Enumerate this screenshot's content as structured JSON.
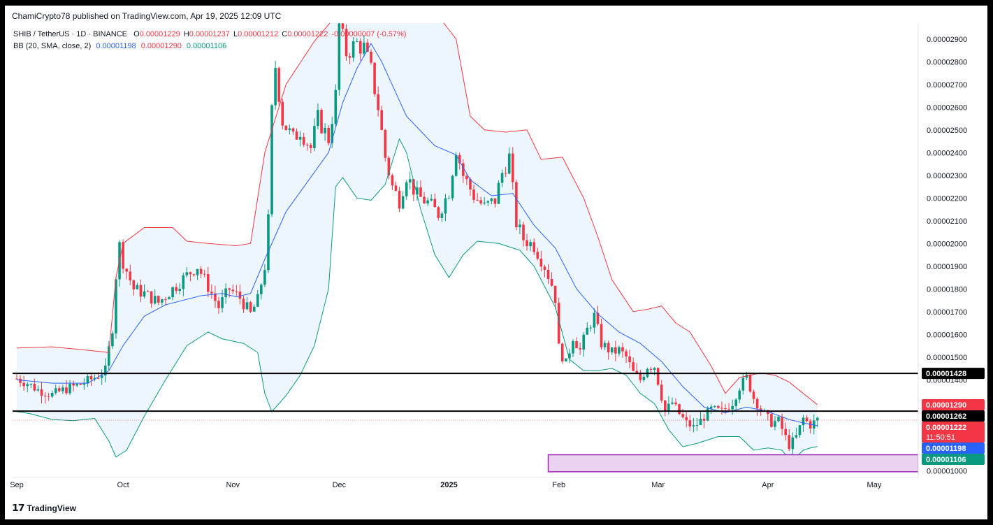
{
  "publish_line": "ChamiCrypto78 published on TradingView.com, Apr 19, 2025 12:09 UTC",
  "brand": "TradingView",
  "legend": {
    "symbol": "SHIB / TetherUS · 1D · BINANCE",
    "open_label": "O",
    "open": "0.00001229",
    "high_label": "H",
    "high": "0.00001237",
    "low_label": "L",
    "low": "0.00001212",
    "close_label": "C",
    "close": "0.00001222",
    "change": "-0.00000007 (-0.57%)",
    "bb_label": "BB (20, SMA, close, 2)",
    "bb_basis": "0.00001198",
    "bb_upper": "0.00001290",
    "bb_lower": "0.00001106"
  },
  "colors": {
    "up": "#089981",
    "down": "#f23645",
    "basis": "#2962ff",
    "upper": "#f23645",
    "lower": "#089981",
    "band_fill": "#eaf3fd",
    "zone_fill": "#ead3f0",
    "zone_stroke": "#9c27b0"
  },
  "chart_data": {
    "type": "candlestick",
    "title": "SHIB / TetherUS · 1D · BINANCE",
    "ylim": [
      9.7e-06,
      2.97e-05
    ],
    "y_ticks": [
      "0.00002900",
      "0.00002800",
      "0.00002700",
      "0.00002600",
      "0.00002500",
      "0.00002400",
      "0.00002300",
      "0.00002200",
      "0.00002100",
      "0.00002000",
      "0.00001900",
      "0.00001800",
      "0.00001700",
      "0.00001600",
      "0.00001500",
      "0.00001400",
      "0.00001000"
    ],
    "x_ticks": [
      {
        "label": "Sep",
        "day": 0
      },
      {
        "label": "Oct",
        "day": 30
      },
      {
        "label": "Nov",
        "day": 61
      },
      {
        "label": "Dec",
        "day": 91
      },
      {
        "label": "2025",
        "day": 122
      },
      {
        "label": "Feb",
        "day": 153
      },
      {
        "label": "Mar",
        "day": 181
      },
      {
        "label": "Apr",
        "day": 212
      },
      {
        "label": "May",
        "day": 242
      }
    ],
    "horizontal_levels": [
      1.428e-05,
      1.262e-05
    ],
    "support_zone": {
      "from_day": 150,
      "low": 9.95e-06,
      "high": 1.07e-05
    },
    "price_tags": [
      {
        "label": "0.00001428",
        "value": 1.428e-05,
        "color": "#000000"
      },
      {
        "label": "0.00001290",
        "value": 1.29e-05,
        "color": "#f23645"
      },
      {
        "label": "0.00001262",
        "value": 1.262e-05,
        "color": "#000000"
      },
      {
        "label": "0.00001222",
        "value": 1.222e-05,
        "color": "#f23645",
        "sub": "11:50:51"
      },
      {
        "label": "0.00001198",
        "value": 1.198e-05,
        "color": "#2962ff"
      },
      {
        "label": "0.00001106",
        "value": 1.106e-05,
        "color": "#089981"
      }
    ],
    "close_anchors": [
      [
        0,
        14.05
      ],
      [
        3,
        13.85
      ],
      [
        6,
        13.55
      ],
      [
        10,
        13.35
      ],
      [
        14,
        13.6
      ],
      [
        18,
        13.8
      ],
      [
        22,
        14.1
      ],
      [
        25,
        14.4
      ],
      [
        27,
        16.3
      ],
      [
        28,
        18.6
      ],
      [
        29,
        19.9
      ],
      [
        30,
        19.2
      ],
      [
        33,
        18.0
      ],
      [
        36,
        17.8
      ],
      [
        40,
        17.4
      ],
      [
        44,
        18.0
      ],
      [
        48,
        18.6
      ],
      [
        51,
        19.0
      ],
      [
        54,
        18.1
      ],
      [
        57,
        17.2
      ],
      [
        60,
        18.0
      ],
      [
        63,
        17.6
      ],
      [
        66,
        16.9
      ],
      [
        68,
        17.5
      ],
      [
        70,
        19.0
      ],
      [
        71,
        21.0
      ],
      [
        72,
        25.8
      ],
      [
        73,
        27.8
      ],
      [
        75,
        25.4
      ],
      [
        78,
        24.6
      ],
      [
        80,
        25.0
      ],
      [
        83,
        24.2
      ],
      [
        85,
        25.5
      ],
      [
        88,
        24.6
      ],
      [
        90,
        26.5
      ],
      [
        91,
        29.6
      ],
      [
        93,
        28.4
      ],
      [
        96,
        28.8
      ],
      [
        98,
        28.6
      ],
      [
        100,
        27.6
      ],
      [
        102,
        26.0
      ],
      [
        104,
        23.8
      ],
      [
        106,
        22.5
      ],
      [
        108,
        21.9
      ],
      [
        110,
        23.0
      ],
      [
        113,
        22.1
      ],
      [
        116,
        21.8
      ],
      [
        119,
        21.3
      ],
      [
        122,
        22.3
      ],
      [
        124,
        24.2
      ],
      [
        126,
        23.0
      ],
      [
        129,
        22.1
      ],
      [
        132,
        21.6
      ],
      [
        135,
        21.9
      ],
      [
        137,
        23.1
      ],
      [
        139,
        23.8
      ],
      [
        141,
        20.9
      ],
      [
        143,
        20.2
      ],
      [
        146,
        19.9
      ],
      [
        149,
        19.0
      ],
      [
        151,
        18.2
      ],
      [
        152,
        17.6
      ],
      [
        153,
        15.4
      ],
      [
        155,
        14.7
      ],
      [
        157,
        15.9
      ],
      [
        159,
        15.3
      ],
      [
        161,
        16.2
      ],
      [
        163,
        16.8
      ],
      [
        165,
        15.6
      ],
      [
        168,
        15.2
      ],
      [
        170,
        15.3
      ],
      [
        172,
        15.0
      ],
      [
        174,
        14.3
      ],
      [
        176,
        14.0
      ],
      [
        178,
        14.6
      ],
      [
        180,
        14.6
      ],
      [
        183,
        12.6
      ],
      [
        185,
        13.0
      ],
      [
        187,
        12.5
      ],
      [
        189,
        12.1
      ],
      [
        191,
        11.9
      ],
      [
        193,
        12.2
      ],
      [
        196,
        12.7
      ],
      [
        199,
        12.6
      ],
      [
        202,
        13.0
      ],
      [
        204,
        13.7
      ],
      [
        206,
        14.1
      ],
      [
        208,
        13.2
      ],
      [
        210,
        12.7
      ],
      [
        213,
        12.1
      ],
      [
        215,
        12.2
      ],
      [
        218,
        11.1
      ],
      [
        220,
        11.5
      ],
      [
        222,
        12.3
      ],
      [
        224,
        12.0
      ],
      [
        226,
        12.25
      ]
    ],
    "basis_anchors": [
      [
        0,
        14.0
      ],
      [
        10,
        13.85
      ],
      [
        20,
        13.85
      ],
      [
        26,
        14.4
      ],
      [
        30,
        15.5
      ],
      [
        36,
        16.8
      ],
      [
        42,
        17.3
      ],
      [
        52,
        17.7
      ],
      [
        58,
        17.8
      ],
      [
        62,
        17.65
      ],
      [
        66,
        17.8
      ],
      [
        70,
        19.3
      ],
      [
        76,
        21.4
      ],
      [
        82,
        22.7
      ],
      [
        88,
        24.0
      ],
      [
        92,
        26.2
      ],
      [
        96,
        27.7
      ],
      [
        100,
        28.8
      ],
      [
        103,
        28.0
      ],
      [
        110,
        25.6
      ],
      [
        118,
        24.3
      ],
      [
        124,
        23.9
      ],
      [
        128,
        22.8
      ],
      [
        134,
        22.1
      ],
      [
        140,
        22.2
      ],
      [
        146,
        20.8
      ],
      [
        152,
        19.8
      ],
      [
        158,
        18.0
      ],
      [
        164,
        16.9
      ],
      [
        170,
        16.1
      ],
      [
        176,
        15.6
      ],
      [
        182,
        14.8
      ],
      [
        188,
        13.7
      ],
      [
        194,
        12.8
      ],
      [
        200,
        12.55
      ],
      [
        206,
        12.8
      ],
      [
        212,
        12.6
      ],
      [
        218,
        12.25
      ],
      [
        222,
        12.1
      ],
      [
        226,
        11.98
      ]
    ],
    "upper_anchors": [
      [
        0,
        15.4
      ],
      [
        10,
        15.45
      ],
      [
        20,
        15.3
      ],
      [
        26,
        15.2
      ],
      [
        28,
        18.5
      ],
      [
        30,
        20.0
      ],
      [
        36,
        20.7
      ],
      [
        44,
        20.7
      ],
      [
        48,
        20.1
      ],
      [
        54,
        20.0
      ],
      [
        62,
        19.9
      ],
      [
        66,
        20.0
      ],
      [
        70,
        24.0
      ],
      [
        76,
        27.0
      ],
      [
        84,
        28.9
      ],
      [
        90,
        30.0
      ],
      [
        98,
        30.0
      ],
      [
        106,
        30.0
      ],
      [
        114,
        30.0
      ],
      [
        120,
        29.8
      ],
      [
        124,
        29.0
      ],
      [
        128,
        25.6
      ],
      [
        132,
        25.0
      ],
      [
        138,
        24.9
      ],
      [
        144,
        25.0
      ],
      [
        148,
        23.7
      ],
      [
        154,
        23.8
      ],
      [
        160,
        22.0
      ],
      [
        164,
        20.3
      ],
      [
        168,
        18.4
      ],
      [
        174,
        17.0
      ],
      [
        178,
        17.1
      ],
      [
        182,
        17.25
      ],
      [
        186,
        16.5
      ],
      [
        190,
        16.1
      ],
      [
        196,
        14.6
      ],
      [
        200,
        13.4
      ],
      [
        204,
        14.1
      ],
      [
        210,
        14.3
      ],
      [
        214,
        14.2
      ],
      [
        218,
        13.9
      ],
      [
        222,
        13.4
      ],
      [
        226,
        12.9
      ]
    ],
    "lower_anchors": [
      [
        0,
        12.6
      ],
      [
        4,
        12.5
      ],
      [
        10,
        12.25
      ],
      [
        16,
        12.2
      ],
      [
        22,
        12.3
      ],
      [
        26,
        11.3
      ],
      [
        28,
        10.6
      ],
      [
        31,
        10.9
      ],
      [
        36,
        12.4
      ],
      [
        42,
        14.0
      ],
      [
        48,
        15.5
      ],
      [
        54,
        16.1
      ],
      [
        58,
        15.8
      ],
      [
        64,
        15.6
      ],
      [
        68,
        15.2
      ],
      [
        70,
        13.4
      ],
      [
        72,
        12.6
      ],
      [
        76,
        13.3
      ],
      [
        80,
        14.2
      ],
      [
        84,
        15.5
      ],
      [
        88,
        18.0
      ],
      [
        90,
        22.5
      ],
      [
        92,
        22.9
      ],
      [
        96,
        22.0
      ],
      [
        100,
        21.9
      ],
      [
        104,
        22.6
      ],
      [
        108,
        24.6
      ],
      [
        110,
        24.0
      ],
      [
        114,
        21.5
      ],
      [
        118,
        19.5
      ],
      [
        122,
        18.5
      ],
      [
        126,
        19.5
      ],
      [
        130,
        20.1
      ],
      [
        136,
        20.0
      ],
      [
        142,
        19.7
      ],
      [
        146,
        19.0
      ],
      [
        152,
        17.2
      ],
      [
        156,
        14.9
      ],
      [
        160,
        14.4
      ],
      [
        164,
        14.4
      ],
      [
        168,
        14.5
      ],
      [
        172,
        14.2
      ],
      [
        176,
        13.4
      ],
      [
        180,
        12.95
      ],
      [
        184,
        11.8
      ],
      [
        188,
        11.05
      ],
      [
        192,
        11.2
      ],
      [
        198,
        11.5
      ],
      [
        204,
        11.5
      ],
      [
        208,
        10.9
      ],
      [
        212,
        11.0
      ],
      [
        216,
        10.9
      ],
      [
        218,
        10.5
      ],
      [
        220,
        10.6
      ],
      [
        222,
        10.9
      ],
      [
        224,
        11.0
      ],
      [
        226,
        11.06
      ]
    ]
  }
}
